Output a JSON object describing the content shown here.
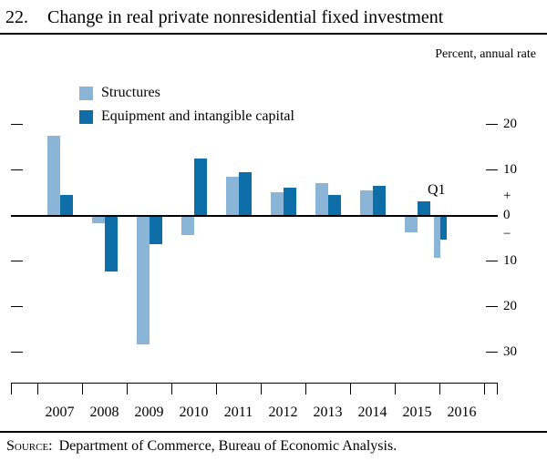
{
  "figure": {
    "number": "22.",
    "title": "Change in real private nonresidential fixed investment",
    "unit_label": "Percent, annual rate",
    "source_prefix": "Source:",
    "source_text": "Department of Commerce, Bureau of Economic Analysis."
  },
  "chart_data": {
    "type": "bar",
    "title": "Change in real private nonresidential fixed investment",
    "unit": "Percent, annual rate",
    "categories": [
      "2007",
      "2008",
      "2009",
      "2010",
      "2011",
      "2012",
      "2013",
      "2014",
      "2015",
      "2016"
    ],
    "series": [
      {
        "name": "Structures",
        "color": "#8ab5d6",
        "values": [
          17.5,
          -1.5,
          -28,
          -4,
          8.5,
          5,
          7,
          5.5,
          -3.5,
          -9
        ]
      },
      {
        "name": "Equipment and intangible capital",
        "color": "#0d6ea8",
        "values": [
          4.5,
          -12,
          -6,
          12.5,
          9.5,
          6,
          4.5,
          6.5,
          3,
          -5
        ]
      }
    ],
    "last_period_label": "Q1",
    "last_period_partial": true,
    "ylim": [
      -30,
      20
    ],
    "grid": false,
    "legend_position": "top-left",
    "axis": {
      "dash_values": [
        20,
        10,
        -10,
        -20,
        -30
      ],
      "right_labels": [
        {
          "v": 20,
          "label": "20"
        },
        {
          "v": 10,
          "label": "10"
        },
        {
          "v": 4.2,
          "label": "+"
        },
        {
          "v": 0,
          "label": "0"
        },
        {
          "v": -4.2,
          "label": "−"
        },
        {
          "v": -10,
          "label": "10"
        },
        {
          "v": -20,
          "label": "20"
        },
        {
          "v": -30,
          "label": "30"
        }
      ]
    }
  }
}
